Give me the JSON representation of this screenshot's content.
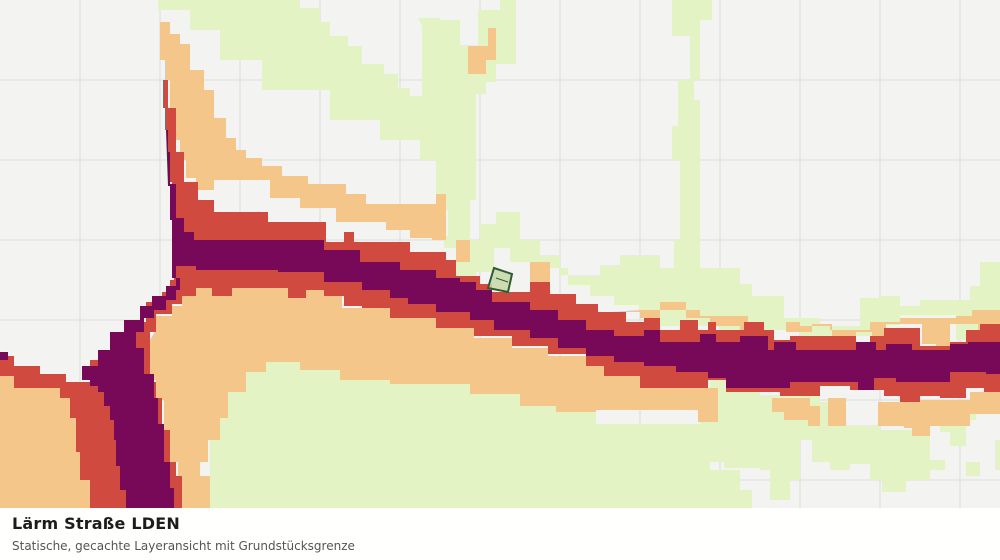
{
  "map": {
    "layer": "Lärm Straße LDEN",
    "colors": {
      "background": "#f3f4f2",
      "grid": "#dcdcdc",
      "band_outer": "#e4f3c4",
      "band_mid": "#f5c68a",
      "band_inner": "#d04a40",
      "band_core": "#780858",
      "parcel_fill": "#c5d8a6",
      "parcel_stroke": "#2f5a34"
    },
    "parcel": {
      "name": "Grundstücksgrenze"
    }
  },
  "caption": {
    "title": "Lärm Straße LDEN",
    "subtitle": "Statische, gecachte Layeransicht mit Grundstücksgrenze"
  }
}
